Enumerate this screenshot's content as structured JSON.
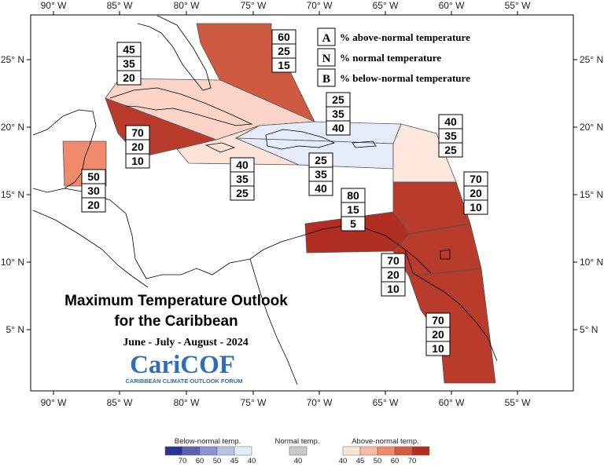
{
  "map": {
    "title_line1": "Maximum Temperature Outlook",
    "title_line2": "for the Caribbean",
    "season": "June - July - August - 2024",
    "logo": {
      "name": "CariCOF",
      "subtitle": "CARIBBEAN CLIMATE OUTLOOK FORUM"
    },
    "longitude_labels": [
      "90° W",
      "85° W",
      "80° W",
      "75° W",
      "70° W",
      "65° W",
      "60° W",
      "55° W"
    ],
    "latitude_labels": [
      "25° N",
      "20° N",
      "15° N",
      "10° N",
      "5° N"
    ],
    "legend": [
      {
        "key": "A",
        "text": "% above-normal temperature"
      },
      {
        "key": "N",
        "text": "% normal temperature"
      },
      {
        "key": "B",
        "text": "% below-normal temperature"
      }
    ],
    "regions": [
      {
        "id": "bahamas",
        "above": "60",
        "normal": "25",
        "below": "15",
        "color": "#cf5a42"
      },
      {
        "id": "cuba",
        "above": "45",
        "normal": "35",
        "below": "20",
        "color": "#fbd3c7"
      },
      {
        "id": "cayman-caribbean-north",
        "above": "70",
        "normal": "20",
        "below": "10",
        "color": "#b83b2b"
      },
      {
        "id": "belize",
        "above": "50",
        "normal": "30",
        "below": "20",
        "color": "#ef8a6d"
      },
      {
        "id": "jamaica",
        "above": "40",
        "normal": "35",
        "below": "25",
        "color": "#fde2d8"
      },
      {
        "id": "hispaniola-north",
        "above": "25",
        "normal": "35",
        "below": "40",
        "color": "#e5ebf8"
      },
      {
        "id": "hispaniola-puerto-rico",
        "above": "25",
        "normal": "35",
        "below": "40",
        "color": "#e5ebf8"
      },
      {
        "id": "northern-leewards",
        "above": "40",
        "normal": "35",
        "below": "25",
        "color": "#fde6dc"
      },
      {
        "id": "eastern-caribbean",
        "above": "70",
        "normal": "20",
        "below": "10",
        "color": "#b83b2b"
      },
      {
        "id": "abc-islands",
        "above": "80",
        "normal": "15",
        "below": "5",
        "color": "#b02e22"
      },
      {
        "id": "trinidad",
        "above": "70",
        "normal": "20",
        "below": "10",
        "color": "#b83b2b"
      },
      {
        "id": "guianas",
        "above": "70",
        "normal": "20",
        "below": "10",
        "color": "#b83b2b"
      }
    ],
    "color_scale": {
      "below": {
        "title": "Below-normal temp.",
        "ticks": [
          "70",
          "60",
          "50",
          "45",
          "40"
        ],
        "colors": [
          "#2b3590",
          "#5a62b0",
          "#8c93cf",
          "#bcc2e6",
          "#e6ebf8"
        ]
      },
      "normal": {
        "title": "Normal temp.",
        "ticks": [
          "40"
        ],
        "colors": [
          "#c8c8c8"
        ]
      },
      "above": {
        "title": "Above-normal temp.",
        "ticks": [
          "40",
          "45",
          "50",
          "60",
          "70"
        ],
        "colors": [
          "#fde2d8",
          "#f8b9a4",
          "#ef8a6d",
          "#d55a42",
          "#b02e22"
        ]
      }
    }
  }
}
